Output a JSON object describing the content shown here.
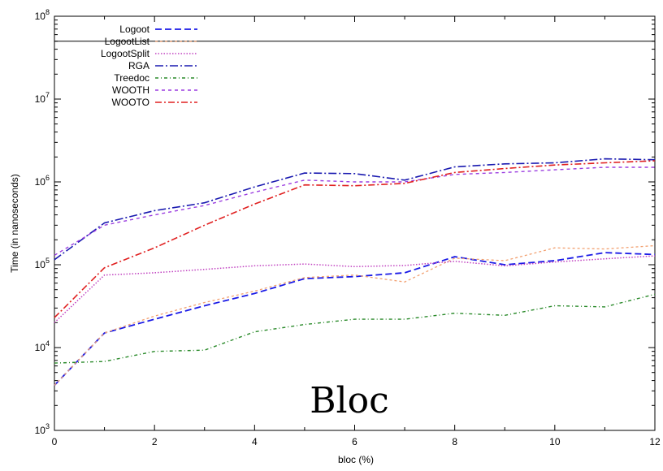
{
  "chart_data": {
    "type": "line",
    "xlabel": "bloc (%)",
    "ylabel": "Time (in nanoseconds)",
    "xlim": [
      0,
      12
    ],
    "ylim": [
      1000,
      100000000
    ],
    "y_scale": "log",
    "x_ticks": [
      0,
      2,
      4,
      6,
      8,
      10,
      12
    ],
    "y_ticks": [
      {
        "value": 1000,
        "base": "10",
        "exp": "3"
      },
      {
        "value": 10000,
        "base": "10",
        "exp": "4"
      },
      {
        "value": 100000,
        "base": "10",
        "exp": "5"
      },
      {
        "value": 1000000,
        "base": "10",
        "exp": "6"
      },
      {
        "value": 10000000,
        "base": "10",
        "exp": "7"
      },
      {
        "value": 100000000,
        "base": "10",
        "exp": "8"
      }
    ],
    "grid": false,
    "legend_position": "top-left",
    "annotation": "Bloc",
    "horizontal_line": 50000000,
    "x": [
      0,
      1,
      2,
      3,
      4,
      5,
      6,
      7,
      8,
      9,
      10,
      11,
      12
    ],
    "series": [
      {
        "name": "Logoot",
        "color": "#1a1ae6",
        "dash": "8,4",
        "width": 1.8,
        "values": [
          3500,
          15000,
          22000,
          32000,
          45000,
          68000,
          72000,
          80000,
          125000,
          100000,
          112000,
          140000,
          133000
        ]
      },
      {
        "name": "LogootList",
        "color": "#f2a070",
        "dash": "3,3",
        "width": 1.3,
        "values": [
          3500,
          15000,
          24000,
          35000,
          48000,
          70000,
          75000,
          62000,
          120000,
          112000,
          160000,
          155000,
          170000
        ]
      },
      {
        "name": "LogootSplit",
        "color": "#c040c0",
        "dash": "1.5,2",
        "width": 1.5,
        "values": [
          20000,
          75000,
          80000,
          88000,
          97000,
          102000,
          95000,
          98000,
          110000,
          97000,
          108000,
          118000,
          128000
        ]
      },
      {
        "name": "RGA",
        "color": "#1a1ab0",
        "dash": "10,3,2,3",
        "width": 1.6,
        "values": [
          115000,
          320000,
          450000,
          560000,
          870000,
          1280000,
          1260000,
          1050000,
          1520000,
          1650000,
          1700000,
          1900000,
          1850000
        ]
      },
      {
        "name": "Treedoc",
        "color": "#2a8a2a",
        "dash": "4,3,1,3",
        "width": 1.4,
        "values": [
          6500,
          6800,
          9000,
          9300,
          15500,
          19000,
          22000,
          22000,
          26000,
          24500,
          32000,
          31000,
          44000
        ]
      },
      {
        "name": "WOOTH",
        "color": "#9b3de0",
        "dash": "4,4",
        "width": 1.4,
        "values": [
          130000,
          300000,
          400000,
          520000,
          750000,
          1050000,
          1000000,
          1000000,
          1230000,
          1300000,
          1400000,
          1500000,
          1500000
        ]
      },
      {
        "name": "WOOTO",
        "color": "#e02020",
        "dash": "8,3,2,3",
        "width": 1.6,
        "values": [
          23000,
          92000,
          160000,
          300000,
          540000,
          920000,
          900000,
          960000,
          1300000,
          1450000,
          1600000,
          1700000,
          1800000
        ]
      }
    ]
  }
}
